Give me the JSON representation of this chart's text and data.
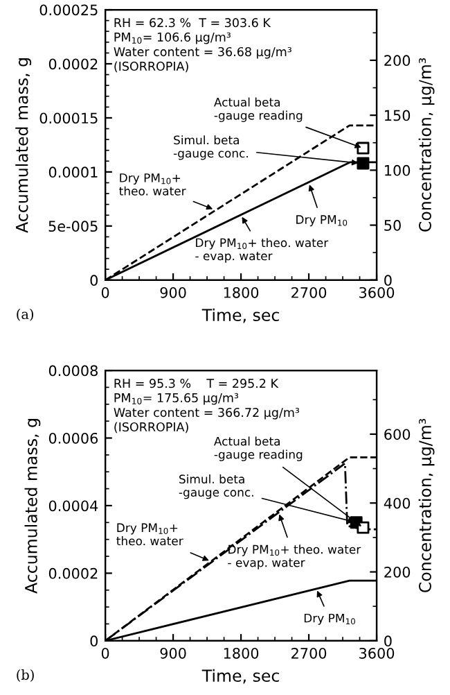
{
  "chart_data": [
    {
      "type": "line",
      "xlabel": "Time, sec",
      "ylabel": "Accumulated mass, g",
      "y2label": "Concentration, µg/m³",
      "xlim": [
        0,
        3600
      ],
      "xticks": [
        0,
        900,
        1800,
        2700,
        3600
      ],
      "ylim": [
        0,
        0.00025
      ],
      "yticks": [
        0,
        {
          "value": 5e-05,
          "label": "5e-005"
        },
        0.0001,
        0.00015,
        0.0002,
        0.00025
      ],
      "y2lim": [
        0,
        246
      ],
      "y2ticks": [
        0,
        50,
        100,
        150,
        200
      ],
      "grid": false,
      "series": [
        {
          "type": "line",
          "color": "#000000",
          "line_style": "dashed",
          "marker": "none",
          "x": [
            0,
            3240,
            3600
          ],
          "values": [
            0,
            0.000143,
            0.000143
          ]
        },
        {
          "type": "line",
          "color": "#000000",
          "line_style": "solid",
          "marker": "none",
          "x": [
            0,
            3250,
            3600
          ],
          "values": [
            0,
            0.000109,
            0.000109
          ]
        },
        {
          "type": "scatter",
          "color": "#ffffff",
          "marker": "square",
          "x": [
            3420
          ],
          "values": [
            0.000122
          ]
        },
        {
          "type": "scatter",
          "color": "#000000",
          "marker": "square",
          "x": [
            3420
          ],
          "values": [
            0.000108
          ]
        }
      ],
      "annotations": [
        "RH = 62.3 %  T = 303.6 K\nPM$_{10}$= 106.6 µg/m³\nWater content = 36.68 µg/m³\n(ISORROPIA)",
        {
          "text": "Actual beta\n-gauge reading",
          "x": 3420,
          "y": 0.000122
        },
        {
          "text": "Simul. beta\n-gauge conc.",
          "x": 3380,
          "y": 0.000108
        },
        {
          "text": "Dry PM$_{10}$+\ntheo. water",
          "x": 1450,
          "y": 6.5e-05
        },
        {
          "text": "Dry PM$_{10}$",
          "x": 2700,
          "y": 9e-05
        },
        {
          "text": "Dry PM$_{10}$+ theo. water\n- evap. water",
          "x": 1800,
          "y": 6e-05
        },
        "(a)"
      ]
    },
    {
      "type": "line",
      "xlabel": "Time, sec",
      "ylabel": "Accumulated mass, g",
      "y2label": "Concentration, µg/m³",
      "xlim": [
        0,
        3600
      ],
      "xticks": [
        0,
        900,
        1800,
        2700,
        3600
      ],
      "ylim": [
        0,
        0.0008
      ],
      "yticks": [
        0,
        0.0002,
        0.0004,
        0.0006,
        0.0008
      ],
      "y2lim": [
        0,
        785
      ],
      "y2ticks": [
        0,
        200,
        400,
        600
      ],
      "grid": false,
      "series": [
        {
          "type": "line",
          "color": "#000000",
          "line_style": "dashed",
          "marker": "none",
          "x": [
            0,
            3240,
            3600
          ],
          "values": [
            0,
            0.000543,
            0.000543
          ]
        },
        {
          "type": "line",
          "color": "#000000",
          "line_style": "dashdot",
          "marker": "none",
          "x": [
            0,
            3180,
            3210,
            3420,
            3600
          ],
          "values": [
            0,
            0.000525,
            0.00034,
            0.00033,
            0.00033
          ]
        },
        {
          "type": "line",
          "color": "#000000",
          "line_style": "solid",
          "marker": "none",
          "x": [
            0,
            3240,
            3600
          ],
          "values": [
            0,
            0.000178,
            0.000178
          ]
        },
        {
          "type": "scatter",
          "color": "#000000",
          "marker": "square",
          "x": [
            3330
          ],
          "values": [
            0.00035
          ]
        },
        {
          "type": "scatter",
          "color": "#ffffff",
          "marker": "square",
          "x": [
            3420
          ],
          "values": [
            0.000335
          ]
        }
      ],
      "annotations": [
        "RH = 95.3 %    T = 295.2 K\nPM$_{10}$= 175.65 µg/m³\nWater content = 366.72 µg/m³\n(ISORROPIA)",
        {
          "text": "Actual beta\n-gauge reading",
          "x": 3420,
          "y": 0.000335
        },
        {
          "text": "Simul. beta\n-gauge conc.",
          "x": 3330,
          "y": 0.00035
        },
        {
          "text": "Dry PM$_{10}$+\ntheo. water",
          "x": 1400,
          "y": 0.000235
        },
        {
          "text": "Dry PM$_{10}$",
          "x": 2800,
          "y": 0.000154
        },
        {
          "text": "Dry PM$_{10}$+ theo. water\n- evap. water",
          "x": 2300,
          "y": 0.00038
        },
        "(b)"
      ]
    }
  ]
}
